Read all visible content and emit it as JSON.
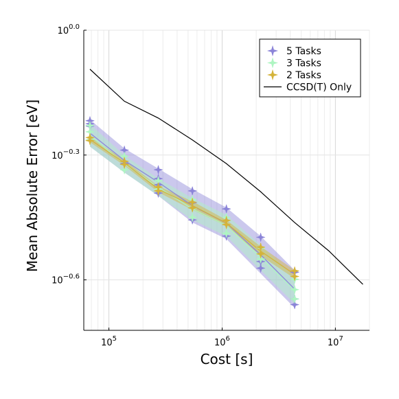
{
  "chart_data": {
    "type": "scatter",
    "title": "",
    "xlabel": "Cost [s]",
    "ylabel": "Mean Absolute Error [eV]",
    "xscale": "log",
    "yscale": "log",
    "xlim": [
      60000,
      20000000
    ],
    "ylim": [
      0.19,
      1.0
    ],
    "x_ticks": [
      {
        "value": 100000,
        "base": "10",
        "exp": "5"
      },
      {
        "value": 1000000,
        "base": "10",
        "exp": "6"
      },
      {
        "value": 10000000,
        "base": "10",
        "exp": "7"
      }
    ],
    "y_ticks": [
      {
        "value": 1.0,
        "base": "10",
        "exp": "0.0"
      },
      {
        "value": 0.5012,
        "base": "10",
        "exp": "−0.3"
      },
      {
        "value": 0.2512,
        "base": "10",
        "exp": "−0.6"
      }
    ],
    "grid": true,
    "legend_position": "top-right",
    "series": [
      {
        "name": "5 Tasks",
        "color": "#8b84d8",
        "marker": "star",
        "bands": [
          {
            "x": 68000,
            "low": 0.525,
            "high": 0.61
          },
          {
            "x": 137000,
            "low": 0.455,
            "high": 0.52
          },
          {
            "x": 273000,
            "low": 0.4,
            "high": 0.465
          },
          {
            "x": 546000,
            "low": 0.345,
            "high": 0.415
          },
          {
            "x": 1090000,
            "low": 0.315,
            "high": 0.375
          },
          {
            "x": 2190000,
            "low": 0.26,
            "high": 0.32
          },
          {
            "x": 4370000,
            "low": 0.215,
            "high": 0.265
          }
        ],
        "points": [
          {
            "x": 68000,
            "y": 0.606
          },
          {
            "x": 68000,
            "y": 0.596
          },
          {
            "x": 68000,
            "y": 0.588
          },
          {
            "x": 137000,
            "y": 0.515
          },
          {
            "x": 137000,
            "y": 0.478
          },
          {
            "x": 273000,
            "y": 0.462
          },
          {
            "x": 273000,
            "y": 0.44
          },
          {
            "x": 273000,
            "y": 0.425
          },
          {
            "x": 273000,
            "y": 0.406
          },
          {
            "x": 546000,
            "y": 0.411
          },
          {
            "x": 546000,
            "y": 0.385
          },
          {
            "x": 546000,
            "y": 0.35
          },
          {
            "x": 1090000,
            "y": 0.372
          },
          {
            "x": 1090000,
            "y": 0.32
          },
          {
            "x": 2190000,
            "y": 0.318
          },
          {
            "x": 2190000,
            "y": 0.278
          },
          {
            "x": 2190000,
            "y": 0.268
          },
          {
            "x": 4370000,
            "y": 0.262
          },
          {
            "x": 4370000,
            "y": 0.226
          },
          {
            "x": 4370000,
            "y": 0.219
          }
        ]
      },
      {
        "name": "3 Tasks",
        "color": "#aef5c2",
        "marker": "star",
        "bands": [
          {
            "x": 68000,
            "low": 0.525,
            "high": 0.595
          },
          {
            "x": 137000,
            "low": 0.455,
            "high": 0.5
          },
          {
            "x": 273000,
            "low": 0.4,
            "high": 0.44
          },
          {
            "x": 546000,
            "low": 0.35,
            "high": 0.395
          },
          {
            "x": 1090000,
            "low": 0.32,
            "high": 0.36
          },
          {
            "x": 2190000,
            "low": 0.265,
            "high": 0.305
          },
          {
            "x": 4370000,
            "low": 0.22,
            "high": 0.255
          }
        ],
        "points": [
          {
            "x": 68000,
            "y": 0.59
          },
          {
            "x": 68000,
            "y": 0.57
          },
          {
            "x": 68000,
            "y": 0.545
          },
          {
            "x": 137000,
            "y": 0.498
          },
          {
            "x": 137000,
            "y": 0.462
          },
          {
            "x": 273000,
            "y": 0.435
          },
          {
            "x": 273000,
            "y": 0.415
          },
          {
            "x": 546000,
            "y": 0.392
          },
          {
            "x": 546000,
            "y": 0.373
          },
          {
            "x": 546000,
            "y": 0.355
          },
          {
            "x": 1090000,
            "y": 0.355
          },
          {
            "x": 1090000,
            "y": 0.325
          },
          {
            "x": 2190000,
            "y": 0.3
          },
          {
            "x": 2190000,
            "y": 0.282
          },
          {
            "x": 4370000,
            "y": 0.252
          },
          {
            "x": 4370000,
            "y": 0.238
          },
          {
            "x": 4370000,
            "y": 0.226
          }
        ]
      },
      {
        "name": "2 Tasks",
        "color": "#d4b33a",
        "marker": "star",
        "bands": [
          {
            "x": 68000,
            "low": 0.538,
            "high": 0.555
          },
          {
            "x": 137000,
            "low": 0.473,
            "high": 0.487
          },
          {
            "x": 273000,
            "low": 0.408,
            "high": 0.422
          },
          {
            "x": 546000,
            "low": 0.37,
            "high": 0.388
          },
          {
            "x": 1090000,
            "low": 0.338,
            "high": 0.35
          },
          {
            "x": 2190000,
            "low": 0.287,
            "high": 0.302
          },
          {
            "x": 4370000,
            "low": 0.253,
            "high": 0.265
          }
        ],
        "points": [
          {
            "x": 68000,
            "y": 0.552
          },
          {
            "x": 68000,
            "y": 0.543
          },
          {
            "x": 137000,
            "y": 0.484
          },
          {
            "x": 137000,
            "y": 0.476
          },
          {
            "x": 273000,
            "y": 0.42
          },
          {
            "x": 273000,
            "y": 0.411
          },
          {
            "x": 546000,
            "y": 0.386
          },
          {
            "x": 546000,
            "y": 0.374
          },
          {
            "x": 1090000,
            "y": 0.349
          },
          {
            "x": 1090000,
            "y": 0.341
          },
          {
            "x": 2190000,
            "y": 0.301
          },
          {
            "x": 2190000,
            "y": 0.29
          },
          {
            "x": 4370000,
            "y": 0.264
          },
          {
            "x": 4370000,
            "y": 0.256
          }
        ]
      },
      {
        "name": "CCSD(T) Only",
        "color": "#000000",
        "marker": "line",
        "points": [
          {
            "x": 68000,
            "y": 0.806
          },
          {
            "x": 137000,
            "y": 0.675
          },
          {
            "x": 273000,
            "y": 0.615
          },
          {
            "x": 546000,
            "y": 0.545
          },
          {
            "x": 1090000,
            "y": 0.478
          },
          {
            "x": 2190000,
            "y": 0.409
          },
          {
            "x": 4370000,
            "y": 0.345
          },
          {
            "x": 8740000,
            "y": 0.295
          },
          {
            "x": 17500000,
            "y": 0.245
          }
        ]
      }
    ]
  }
}
